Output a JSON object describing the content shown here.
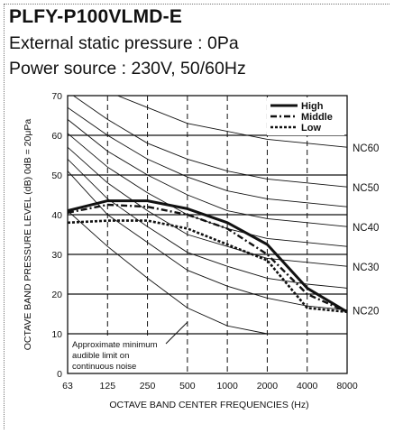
{
  "header": {
    "model": "PLFY-P100VLMD-E",
    "line1": "External static pressure : 0Pa",
    "line2": "Power source : 230V, 50/60Hz"
  },
  "chart_data": {
    "type": "line",
    "xlabel": "OCTAVE  BAND  CENTER  FREQUENCIES (Hz)",
    "ylabel": "OCTAVE  BAND  PRESSURE  LEVEL (dB) 0dB = 20μPa",
    "categories": [
      "63",
      "125",
      "250",
      "500",
      "1000",
      "2000",
      "4000",
      "8000"
    ],
    "ylim": [
      0,
      70
    ],
    "yticks": [
      0,
      10,
      20,
      30,
      40,
      50,
      60,
      70
    ],
    "grid": "horizontal solid lines every 10 dB; vertical dashed lines at each octave band",
    "legend_placement": "top-right",
    "series": [
      {
        "name": "High",
        "style": "solid-bold",
        "values": [
          41,
          43.5,
          43.5,
          41.5,
          38,
          32.5,
          21.5,
          15.5
        ]
      },
      {
        "name": "Middle",
        "style": "dash-dot",
        "values": [
          40.5,
          42.5,
          42,
          40,
          36.5,
          30,
          20,
          15.5
        ]
      },
      {
        "name": "Low",
        "style": "dotted-bold",
        "values": [
          38,
          38.5,
          38.5,
          36.5,
          32.5,
          28.5,
          16.5,
          15.5
        ]
      }
    ],
    "nc_curves": [
      {
        "label": "NC60",
        "values": [
          77,
          71,
          67,
          63,
          61,
          59,
          58,
          57
        ]
      },
      {
        "label": "NC50",
        "values": [
          71,
          64,
          58,
          54,
          51,
          49,
          48,
          47
        ]
      },
      {
        "label": "NC40",
        "values": [
          64,
          56,
          50,
          45,
          41,
          39,
          38,
          37
        ]
      },
      {
        "label": "NC30",
        "values": [
          57,
          48,
          41,
          35,
          32,
          29,
          28,
          27
        ]
      },
      {
        "label": "NC20",
        "values": [
          51,
          40,
          33,
          26,
          22,
          19,
          17,
          16
        ]
      }
    ],
    "extra_nc_lines": [
      {
        "values": [
          67,
          60,
          54,
          49.5,
          46,
          44,
          43,
          42
        ]
      },
      {
        "values": [
          60.5,
          52,
          45.5,
          40,
          36.5,
          34,
          33,
          32
        ]
      },
      {
        "values": [
          54,
          44,
          37,
          30.5,
          27,
          24,
          22.5,
          21.5
        ]
      }
    ],
    "threshold": {
      "label_lines": [
        "Approximate minimum",
        "audible limit on",
        "continuous noise"
      ],
      "values": [
        41,
        32,
        24,
        16.5,
        12,
        10,
        10,
        10
      ]
    }
  }
}
